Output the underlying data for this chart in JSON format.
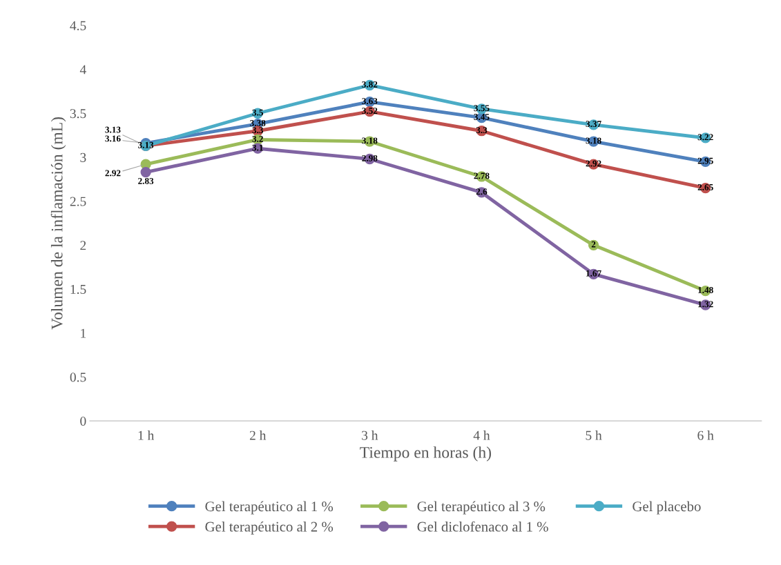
{
  "chart_data": {
    "type": "line",
    "xlabel": "Tiempo en horas (h)",
    "ylabel": "Volumen de la inflamación (mL)",
    "categories": [
      "1 h",
      "2 h",
      "3 h",
      "4 h",
      "5 h",
      "6 h"
    ],
    "series": [
      {
        "name": "Gel terapéutico al 1 %",
        "color": "#4f81bd",
        "values": [
          3.16,
          3.38,
          3.63,
          3.45,
          3.18,
          2.95
        ]
      },
      {
        "name": "Gel terapéutico al 2 %",
        "color": "#c0504d",
        "values": [
          3.13,
          3.3,
          3.52,
          3.3,
          2.92,
          2.65
        ]
      },
      {
        "name": "Gel terapéutico al 3 %",
        "color": "#9bbb59",
        "values": [
          2.92,
          3.2,
          3.18,
          2.78,
          2,
          1.48
        ]
      },
      {
        "name": "Gel diclofenaco al 1 %",
        "color": "#8064a2",
        "values": [
          2.83,
          3.1,
          2.98,
          2.6,
          1.67,
          1.32
        ]
      },
      {
        "name": "Gel placebo",
        "color": "#4bacc6",
        "values": [
          3.13,
          3.5,
          3.82,
          3.55,
          3.37,
          3.22
        ]
      }
    ],
    "ylim": [
      0,
      4.5
    ],
    "yticks": [
      0,
      0.5,
      1,
      1.5,
      2,
      2.5,
      3,
      3.5,
      4,
      4.5
    ],
    "data_labels": true,
    "marker": "circle",
    "line_style": "solid",
    "legend": "bottom",
    "grid": false
  }
}
